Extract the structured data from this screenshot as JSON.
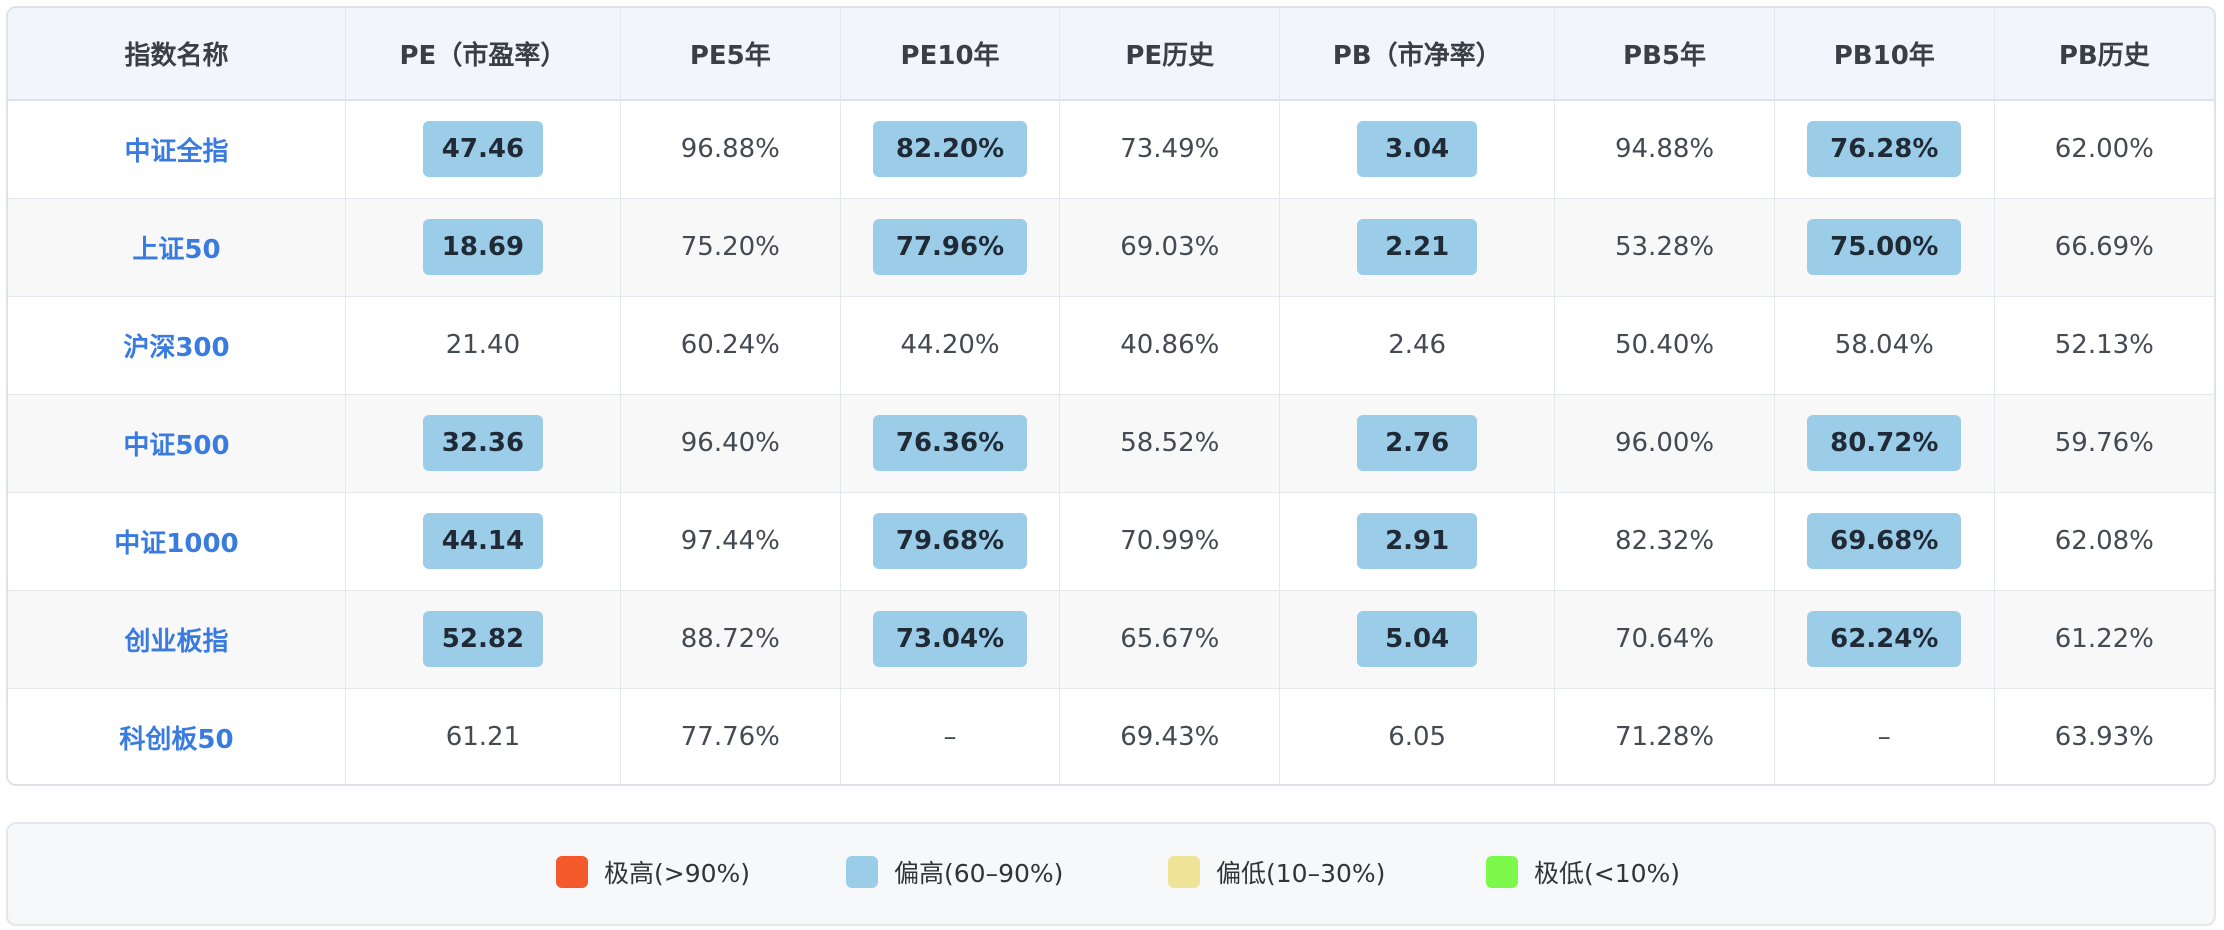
{
  "table": {
    "headers": [
      "指数名称",
      "PE（市盈率）",
      "PE5年",
      "PE10年",
      "PE历史",
      "PB（市净率）",
      "PB5年",
      "PB10年",
      "PB历史"
    ],
    "highlighted_columns": [
      1,
      3,
      5,
      7
    ],
    "rows": [
      {
        "name": "中证全指",
        "values": [
          "47.46",
          "96.88%",
          "82.20%",
          "73.49%",
          "3.04",
          "94.88%",
          "76.28%",
          "62.00%"
        ],
        "highlight": [
          true,
          false,
          true,
          false,
          true,
          false,
          true,
          false
        ]
      },
      {
        "name": "上证50",
        "values": [
          "18.69",
          "75.20%",
          "77.96%",
          "69.03%",
          "2.21",
          "53.28%",
          "75.00%",
          "66.69%"
        ],
        "highlight": [
          true,
          false,
          true,
          false,
          true,
          false,
          true,
          false
        ]
      },
      {
        "name": "沪深300",
        "values": [
          "21.40",
          "60.24%",
          "44.20%",
          "40.86%",
          "2.46",
          "50.40%",
          "58.04%",
          "52.13%"
        ],
        "highlight": [
          false,
          false,
          false,
          false,
          false,
          false,
          false,
          false
        ]
      },
      {
        "name": "中证500",
        "values": [
          "32.36",
          "96.40%",
          "76.36%",
          "58.52%",
          "2.76",
          "96.00%",
          "80.72%",
          "59.76%"
        ],
        "highlight": [
          true,
          false,
          true,
          false,
          true,
          false,
          true,
          false
        ]
      },
      {
        "name": "中证1000",
        "values": [
          "44.14",
          "97.44%",
          "79.68%",
          "70.99%",
          "2.91",
          "82.32%",
          "69.68%",
          "62.08%"
        ],
        "highlight": [
          true,
          false,
          true,
          false,
          true,
          false,
          true,
          false
        ]
      },
      {
        "name": "创业板指",
        "values": [
          "52.82",
          "88.72%",
          "73.04%",
          "65.67%",
          "5.04",
          "70.64%",
          "62.24%",
          "61.22%"
        ],
        "highlight": [
          true,
          false,
          true,
          false,
          true,
          false,
          true,
          false
        ]
      },
      {
        "name": "科创板50",
        "values": [
          "61.21",
          "77.76%",
          "–",
          "69.43%",
          "6.05",
          "71.28%",
          "–",
          "63.93%"
        ],
        "highlight": [
          false,
          false,
          false,
          false,
          false,
          false,
          false,
          false
        ]
      }
    ]
  },
  "legend": {
    "items": [
      {
        "label": "极高(>90%)",
        "color": "#f4592b"
      },
      {
        "label": "偏高(60–90%)",
        "color": "#9ccde8"
      },
      {
        "label": "偏低(10–30%)",
        "color": "#f0e499"
      },
      {
        "label": "极低(<10%)",
        "color": "#7cf94a"
      }
    ]
  },
  "colors": {
    "highlight": "#9ccde8",
    "index_name_text": "#3a7be0",
    "header_background": "#f2f6fc"
  }
}
